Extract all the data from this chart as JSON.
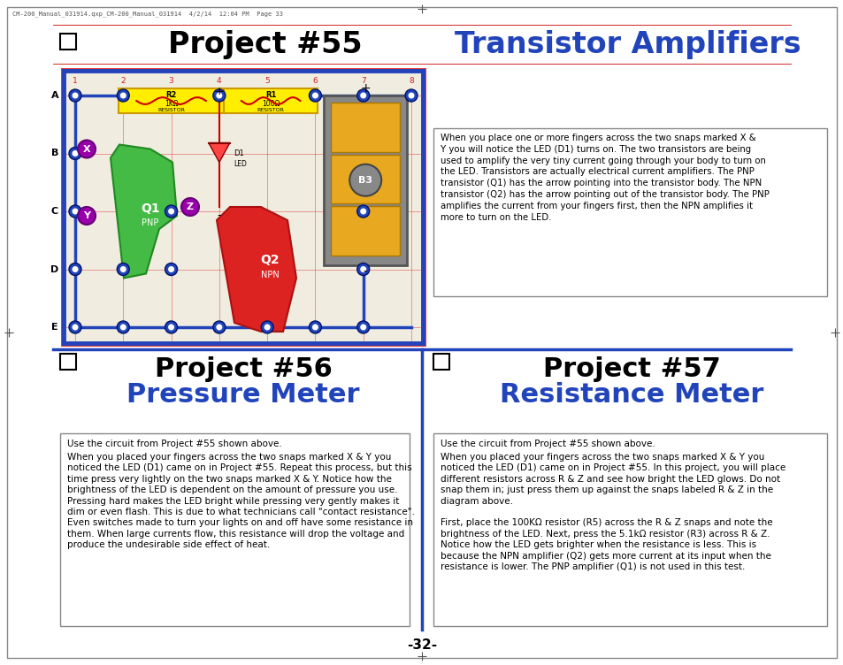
{
  "bg_color": "#ffffff",
  "blue_color": "#2244bb",
  "black": "#000000",
  "title_left": "Project #55",
  "title_right": "Transistor Amplifiers",
  "project56_title": "Project #56",
  "project56_sub": "Pressure Meter",
  "project57_title": "Project #57",
  "project57_sub": "Resistance Meter",
  "header_meta": "CM-200_Manual_031914.qxp_CM-200_Manual_031914  4/2/14  12:04 PM  Page 33",
  "page_number": "-32-",
  "text_box_top": "When you place one or more fingers across the two snaps marked X &\nY you will notice the LED (D1) turns on. The two transistors are being\nused to amplify the very tiny current going through your body to turn on\nthe LED. Transistors are actually electrical current amplifiers. The PNP\ntransistor (Q1) has the arrow pointing into the transistor body. The NPN\ntransistor (Q2) has the arrow pointing out of the transistor body. The PNP\namplifies the current from your fingers first, then the NPN amplifies it\nmore to turn on the LED.",
  "text_box_p56_title": "Use the circuit from Project #55 shown above.",
  "text_box_p56_body": "When you placed your fingers across the two snaps marked X & Y you noticed the LED (D1) came on in Project #55. Repeat this process, but this time press very lightly on the two snaps marked X & Y. Notice how the brightness of the LED is dependent on the amount of pressure you use. Pressing hard makes the LED bright while pressing very gently makes it dim or even flash. This is due to what technicians call \"contact resistance\". Even switches made to turn your lights on and off have some resistance in them. When large currents flow, this resistance will drop the voltage and produce the undesirable side effect of heat.",
  "text_box_p57_title": "Use the circuit from Project #55 shown above.",
  "text_box_p57_body1": "When you placed your fingers across the two snaps marked X & Y you noticed the LED (D1) came on in Project #55. In this project, you will place different resistors across R & Z and see how bright the LED glows. Do not snap them in; just press them up against the snaps labeled R & Z in the diagram above.",
  "text_box_p57_body2": "First, place the 100KΩ resistor (R5) across the R & Z snaps and note the brightness of the LED. Next, press the 5.1kΩ resistor (R3) across R & Z. Notice how the LED gets brighter when the resistance is less. This is because the NPN amplifier (Q2) gets more current at its input when the resistance is lower. The PNP amplifier (Q1) is not used in this test."
}
